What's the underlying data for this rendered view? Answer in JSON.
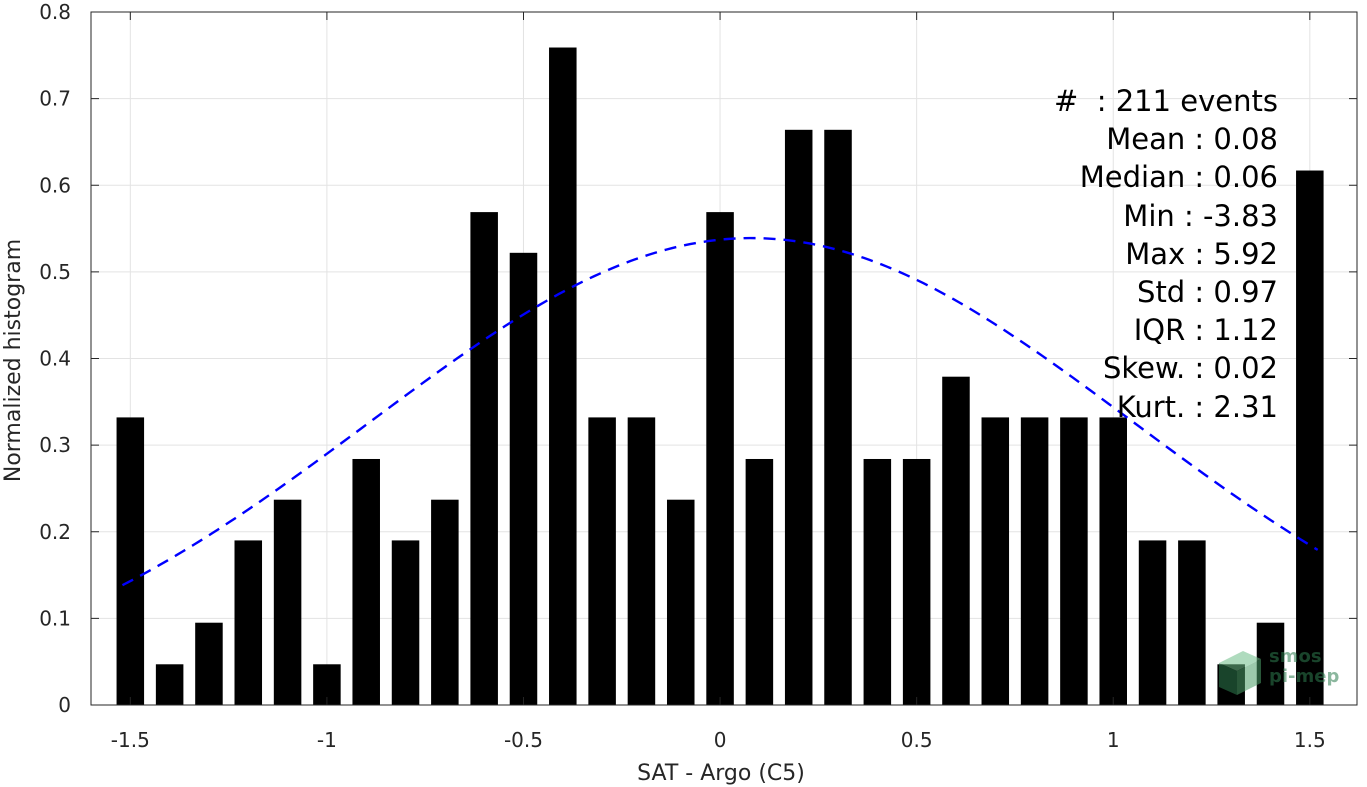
{
  "chart_data": {
    "type": "bar",
    "xlabel": "SAT - Argo (C5)",
    "ylabel": "Normalized histogram",
    "xlim": [
      -1.6,
      1.62
    ],
    "ylim": [
      0,
      0.8
    ],
    "x_ticks": [
      -1.5,
      -1,
      -0.5,
      0,
      0.5,
      1,
      1.5
    ],
    "x_tick_labels": [
      "-1.5",
      "-1",
      "-0.5",
      "0",
      "0.5",
      "1",
      "1.5"
    ],
    "y_ticks": [
      0,
      0.1,
      0.2,
      0.3,
      0.4,
      0.5,
      0.6,
      0.7,
      0.8
    ],
    "y_tick_labels": [
      "0",
      "0.1",
      "0.2",
      "0.3",
      "0.4",
      "0.5",
      "0.6",
      "0.7",
      "0.8"
    ],
    "grid": true,
    "bars": {
      "color": "#000000",
      "width": 0.07,
      "x": [
        -1.5,
        -1.4,
        -1.3,
        -1.2,
        -1.1,
        -1.0,
        -0.9,
        -0.8,
        -0.7,
        -0.6,
        -0.5,
        -0.4,
        -0.3,
        -0.2,
        -0.1,
        0.0,
        0.1,
        0.2,
        0.3,
        0.4,
        0.5,
        0.6,
        0.7,
        0.8,
        0.9,
        1.0,
        1.1,
        1.2,
        1.3,
        1.4,
        1.5
      ],
      "values": [
        0.332,
        0.047,
        0.095,
        0.19,
        0.237,
        0.047,
        0.284,
        0.19,
        0.237,
        0.569,
        0.522,
        0.759,
        0.332,
        0.332,
        0.237,
        0.569,
        0.284,
        0.664,
        0.664,
        0.284,
        0.284,
        0.379,
        0.332,
        0.332,
        0.332,
        0.332,
        0.19,
        0.19,
        0.047,
        0.095,
        0.617
      ]
    },
    "fit_curve": {
      "style": "dashed",
      "color": "#0000ff",
      "distribution": "normal",
      "mean": 0.08,
      "std": 0.97,
      "peak": 0.539,
      "x_range": [
        -1.52,
        1.52
      ]
    },
    "stats": [
      "#  : 211 events",
      "Mean : 0.08",
      "Median : 0.06",
      "Min : -3.83",
      "Max : 5.92",
      "Std : 0.97",
      "IQR : 1.12",
      "Skew. : 0.02",
      "Kurt. : 2.31"
    ]
  },
  "logo": {
    "text_line1": "smos",
    "text_line2": "pi-mep",
    "color": "#2e7d4f"
  }
}
